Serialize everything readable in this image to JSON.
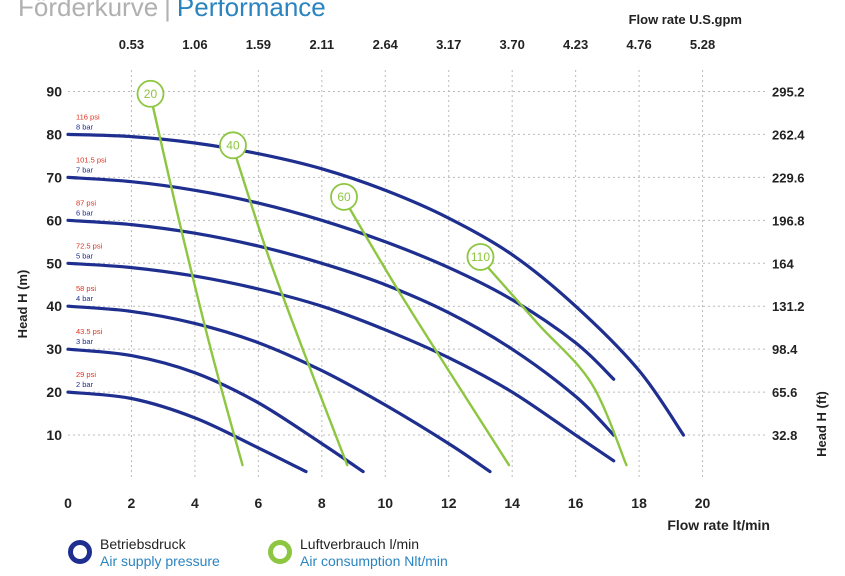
{
  "header": {
    "title_de": "Förderkurve",
    "title_sep": "|",
    "title_en": "Performance"
  },
  "colors": {
    "pressure": "#1f2f8f",
    "air": "#8dc641",
    "psi_label": "#e0301e",
    "bar_label": "#1f2f8f",
    "grid": "#bbbbbb"
  },
  "chart_data": {
    "type": "line",
    "title": "",
    "xlabel": "Flow rate  lt/min",
    "ylabel": "Head H (m)",
    "ylabel_right": "Head H (ft)",
    "xlabel_top": "Flow rate U.S.gpm",
    "xlim": [
      0,
      22
    ],
    "ylim": [
      0,
      95
    ],
    "grid": true,
    "x_ticks": [
      0,
      2,
      4,
      6,
      8,
      10,
      12,
      14,
      16,
      18,
      20
    ],
    "x_tick_labels": [
      "0",
      "2",
      "4",
      "6",
      "8",
      "10",
      "12",
      "14",
      "16",
      "18",
      "20"
    ],
    "x_top_ticks": [
      2,
      4,
      6,
      8,
      10,
      12,
      14,
      16,
      18,
      20
    ],
    "x_top_tick_labels": [
      "0.53",
      "1.06",
      "1.59",
      "2.11",
      "2.64",
      "3.17",
      "3.70",
      "4.23",
      "4.76",
      "5.28"
    ],
    "y_ticks": [
      10,
      20,
      30,
      40,
      50,
      60,
      70,
      80,
      90
    ],
    "y_tick_labels": [
      "10",
      "20",
      "30",
      "40",
      "50",
      "60",
      "70",
      "80",
      "90"
    ],
    "y_right_ticks": [
      10,
      20,
      30,
      40,
      50,
      60,
      70,
      80,
      90
    ],
    "y_right_tick_labels": [
      "32.8",
      "65.6",
      "98.4",
      "131.2",
      "164",
      "196.8",
      "229.6",
      "262.4",
      "295.2"
    ],
    "pressure_series": [
      {
        "psi": "29 psi",
        "bar": "2 bar",
        "start": 20,
        "x": [
          0,
          2,
          4,
          6,
          7.5
        ],
        "y": [
          20,
          18.5,
          14,
          7,
          1.5
        ]
      },
      {
        "psi": "43.5 psi",
        "bar": "3 bar",
        "start": 30,
        "x": [
          0,
          2,
          4,
          6,
          8,
          9.3
        ],
        "y": [
          30,
          28.5,
          24.5,
          17.5,
          8,
          1.5
        ]
      },
      {
        "psi": "58 psi",
        "bar": "4 bar",
        "start": 40,
        "x": [
          0,
          2,
          4,
          6,
          8,
          10,
          12,
          13.3
        ],
        "y": [
          40,
          38.8,
          36,
          31.5,
          25,
          17,
          8,
          1.5
        ]
      },
      {
        "psi": "72.5 psi",
        "bar": "5 bar",
        "start": 50,
        "x": [
          0,
          2,
          4,
          6,
          8,
          10,
          12,
          14,
          16,
          17.2
        ],
        "y": [
          50,
          49,
          47,
          44,
          40,
          34.5,
          28,
          20,
          10,
          4
        ]
      },
      {
        "psi": "87 psi",
        "bar": "6 bar",
        "start": 60,
        "x": [
          0,
          2,
          4,
          6,
          8,
          10,
          12,
          14,
          16,
          17.2
        ],
        "y": [
          60,
          59,
          57,
          54,
          50,
          45,
          38.5,
          30,
          19,
          10
        ]
      },
      {
        "psi": "101.5 psi",
        "bar": "7 bar",
        "start": 70,
        "x": [
          0,
          2,
          4,
          6,
          8,
          10,
          12,
          14,
          16,
          17.2
        ],
        "y": [
          70,
          69,
          67,
          64,
          60,
          55,
          49,
          41.5,
          31.5,
          23
        ]
      },
      {
        "psi": "116 psi",
        "bar": "8 bar",
        "start": 80,
        "x": [
          0,
          2,
          4,
          6,
          8,
          10,
          12,
          14,
          16,
          18,
          19.4
        ],
        "y": [
          80,
          79.5,
          78,
          75.5,
          72,
          67,
          60.5,
          52,
          40,
          25,
          10
        ]
      }
    ],
    "air_series": [
      {
        "name": "20",
        "x": [
          2.6,
          3.5,
          4.5,
          5.5
        ],
        "y": [
          89,
          60,
          30,
          3
        ]
      },
      {
        "name": "40",
        "x": [
          5.2,
          6.3,
          7.5,
          8.8
        ],
        "y": [
          77,
          52,
          28,
          3
        ]
      },
      {
        "name": "60",
        "x": [
          8.7,
          10.3,
          12,
          13.9
        ],
        "y": [
          65,
          45,
          25,
          3
        ]
      },
      {
        "name": "110",
        "x": [
          13,
          14.8,
          16.5,
          17.6
        ],
        "y": [
          51,
          36,
          22,
          3
        ]
      }
    ],
    "legend": [
      {
        "color_key": "pressure",
        "label_de": "Betriebsdruck",
        "label_en": "Air supply pressure"
      },
      {
        "color_key": "air",
        "label_de": "Luftverbrauch l/min",
        "label_en": "Air consumption Nlt/min"
      }
    ],
    "legend_position": "bottom-left"
  }
}
